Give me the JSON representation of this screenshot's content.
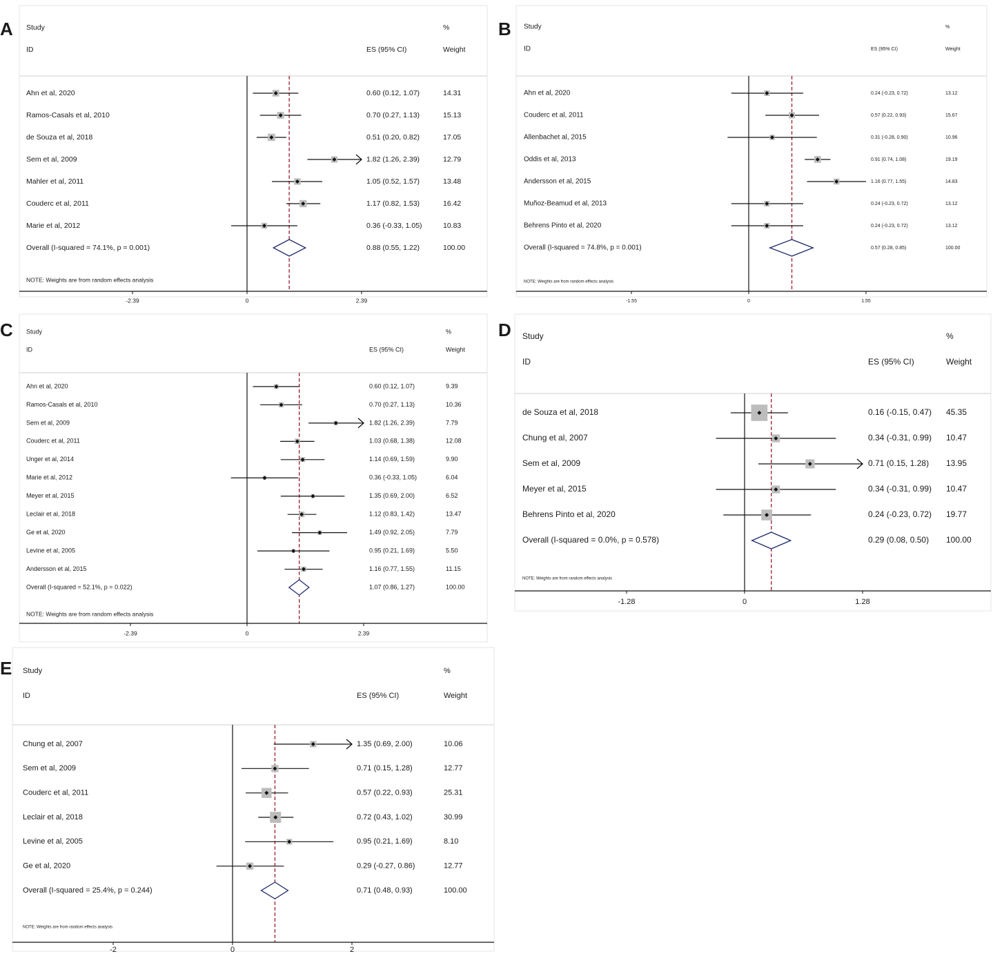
{
  "colors": {
    "text": "#1a1a1a",
    "line": "#111111",
    "overall_dash": "#9b1c2c",
    "diamond": "#1f2a6b",
    "weight_box": "#bdbdbd",
    "panel_background": "#f3f3f3"
  },
  "chart_data": [
    {
      "panel": "A",
      "type": "forest",
      "header": {
        "study": "Study",
        "id": "ID",
        "es": "ES (95% CI)",
        "pct": "%",
        "weight": "Weight"
      },
      "studies": [
        {
          "label": "Ahn et al, 2020",
          "es": 0.6,
          "lo": 0.12,
          "hi": 1.07,
          "es_text": "0.60 (0.12, 1.07)",
          "weight": "14.31"
        },
        {
          "label": "Ramos-Casals et al, 2010",
          "es": 0.7,
          "lo": 0.27,
          "hi": 1.13,
          "es_text": "0.70 (0.27, 1.13)",
          "weight": "15.13"
        },
        {
          "label": "de Souza et al, 2018",
          "es": 0.51,
          "lo": 0.2,
          "hi": 0.82,
          "es_text": "0.51 (0.20, 0.82)",
          "weight": "17.05"
        },
        {
          "label": "Sem et al, 2009",
          "es": 1.82,
          "lo": 1.26,
          "hi": 2.39,
          "es_text": "1.82 (1.26, 2.39)",
          "weight": "12.79",
          "arrow": true
        },
        {
          "label": "Mahler et al, 2011",
          "es": 1.05,
          "lo": 0.52,
          "hi": 1.57,
          "es_text": "1.05 (0.52, 1.57)",
          "weight": "13.48"
        },
        {
          "label": "Couderc et al, 2011",
          "es": 1.17,
          "lo": 0.82,
          "hi": 1.53,
          "es_text": "1.17 (0.82, 1.53)",
          "weight": "16.42"
        },
        {
          "label": "Marie et al, 2012",
          "es": 0.36,
          "lo": -0.33,
          "hi": 1.05,
          "es_text": "0.36 (-0.33, 1.05)",
          "weight": "10.83"
        }
      ],
      "overall": {
        "label": "Overall  (I-squared = 74.1%, p = 0.001)",
        "es": 0.88,
        "lo": 0.55,
        "hi": 1.22,
        "es_text": "0.88 (0.55, 1.22)",
        "weight": "100.00"
      },
      "note": "NOTE: Weights are from random effects analysis",
      "axis": {
        "ticks": [
          -2.39,
          0,
          2.39
        ],
        "tick_labels": [
          "-2.39",
          "0",
          "2.39"
        ]
      }
    },
    {
      "panel": "B",
      "type": "forest",
      "header": {
        "study": "Study",
        "id": "ID",
        "es": "ES (95% CI)",
        "pct": "%",
        "weight": "Weight"
      },
      "studies": [
        {
          "label": "Ahn et al, 2020",
          "es": 0.24,
          "lo": -0.23,
          "hi": 0.72,
          "es_text": "0.24 (-0.23, 0.72)",
          "weight": "13.12"
        },
        {
          "label": "Couderc et al, 2011",
          "es": 0.57,
          "lo": 0.22,
          "hi": 0.93,
          "es_text": "0.57 (0.22, 0.93)",
          "weight": "15.67"
        },
        {
          "label": "Allenbachet al, 2015",
          "es": 0.31,
          "lo": -0.28,
          "hi": 0.9,
          "es_text": "0.31 (-0.28, 0.90)",
          "weight": "10.96"
        },
        {
          "label": "Oddis et al, 2013",
          "es": 0.91,
          "lo": 0.74,
          "hi": 1.08,
          "es_text": "0.91 (0.74, 1.08)",
          "weight": "19.19"
        },
        {
          "label": "Andersson et al, 2015",
          "es": 1.16,
          "lo": 0.77,
          "hi": 1.55,
          "es_text": "1.16 (0.77, 1.55)",
          "weight": "14.83"
        },
        {
          "label": "Muñoz-Beamud et al, 2013",
          "es": 0.24,
          "lo": -0.23,
          "hi": 0.72,
          "es_text": "0.24 (-0.23, 0.72)",
          "weight": "13.12"
        },
        {
          "label": "Behrens Pinto et al, 2020",
          "es": 0.24,
          "lo": -0.23,
          "hi": 0.72,
          "es_text": "0.24 (-0.23, 0.72)",
          "weight": "13.12"
        }
      ],
      "overall": {
        "label": "Overall  (I-squared = 74.8%, p = 0.001)",
        "es": 0.57,
        "lo": 0.28,
        "hi": 0.85,
        "es_text": "0.57 (0.28, 0.85)",
        "weight": "100.00"
      },
      "note": "NOTE: Weights are from random effects analysis",
      "axis": {
        "ticks": [
          -1.55,
          0,
          1.55
        ],
        "tick_labels": [
          "-1.55",
          "0",
          "1.55"
        ]
      }
    },
    {
      "panel": "C",
      "type": "forest",
      "header": {
        "study": "Study",
        "id": "ID",
        "es": "ES (95% CI)",
        "pct": "%",
        "weight": "Weight"
      },
      "studies": [
        {
          "label": "Ahn et al, 2020",
          "es": 0.6,
          "lo": 0.12,
          "hi": 1.07,
          "es_text": "0.60 (0.12, 1.07)",
          "weight": "9.39"
        },
        {
          "label": "Ramos-Casals et al, 2010",
          "es": 0.7,
          "lo": 0.27,
          "hi": 1.13,
          "es_text": "0.70 (0.27, 1.13)",
          "weight": "10.36"
        },
        {
          "label": "Sem et al, 2009",
          "es": 1.82,
          "lo": 1.26,
          "hi": 2.39,
          "es_text": "1.82 (1.26, 2.39)",
          "weight": "7.79",
          "arrow": true
        },
        {
          "label": "Couderc et al, 2011",
          "es": 1.03,
          "lo": 0.68,
          "hi": 1.38,
          "es_text": "1.03 (0.68, 1.38)",
          "weight": "12.08"
        },
        {
          "label": "Unger et al, 2014",
          "es": 1.14,
          "lo": 0.69,
          "hi": 1.59,
          "es_text": "1.14 (0.69, 1.59)",
          "weight": "9.90"
        },
        {
          "label": "Marie et al, 2012",
          "es": 0.36,
          "lo": -0.33,
          "hi": 1.05,
          "es_text": "0.36 (-0.33, 1.05)",
          "weight": "6.04"
        },
        {
          "label": "Meyer et al, 2015",
          "es": 1.35,
          "lo": 0.69,
          "hi": 2.0,
          "es_text": "1.35 (0.69, 2.00)",
          "weight": "6.52"
        },
        {
          "label": "Leclair et al, 2018",
          "es": 1.12,
          "lo": 0.83,
          "hi": 1.42,
          "es_text": "1.12 (0.83, 1.42)",
          "weight": "13.47"
        },
        {
          "label": "Ge et al, 2020",
          "es": 1.49,
          "lo": 0.92,
          "hi": 2.05,
          "es_text": "1.49 (0.92, 2.05)",
          "weight": "7.79"
        },
        {
          "label": "Levine et al, 2005",
          "es": 0.95,
          "lo": 0.21,
          "hi": 1.69,
          "es_text": "0.95 (0.21, 1.69)",
          "weight": "5.50"
        },
        {
          "label": "Andersson et al, 2015",
          "es": 1.16,
          "lo": 0.77,
          "hi": 1.55,
          "es_text": "1.16 (0.77, 1.55)",
          "weight": "11.15"
        }
      ],
      "overall": {
        "label": "Overall  (I-squared = 52.1%, p = 0.022)",
        "es": 1.07,
        "lo": 0.86,
        "hi": 1.27,
        "es_text": "1.07 (0.86, 1.27)",
        "weight": "100.00"
      },
      "note": "NOTE: Weights are from random effects analysis",
      "axis": {
        "ticks": [
          -2.39,
          0,
          2.39
        ],
        "tick_labels": [
          "-2.39",
          "0",
          "2.39"
        ]
      }
    },
    {
      "panel": "D",
      "type": "forest",
      "header": {
        "study": "Study",
        "id": "ID",
        "es": "ES (95% CI)",
        "pct": "%",
        "weight": "Weight"
      },
      "studies": [
        {
          "label": "de Souza et al, 2018",
          "es": 0.16,
          "lo": -0.15,
          "hi": 0.47,
          "es_text": "0.16 (-0.15, 0.47)",
          "weight": "45.35"
        },
        {
          "label": "Chung et al, 2007",
          "es": 0.34,
          "lo": -0.31,
          "hi": 0.99,
          "es_text": "0.34 (-0.31, 0.99)",
          "weight": "10.47"
        },
        {
          "label": "Sem et al, 2009",
          "es": 0.71,
          "lo": 0.15,
          "hi": 1.28,
          "es_text": "0.71 (0.15, 1.28)",
          "weight": "13.95",
          "arrow": true
        },
        {
          "label": "Meyer et al, 2015",
          "es": 0.34,
          "lo": -0.31,
          "hi": 0.99,
          "es_text": "0.34 (-0.31, 0.99)",
          "weight": "10.47"
        },
        {
          "label": "Behrens Pinto et al, 2020",
          "es": 0.24,
          "lo": -0.23,
          "hi": 0.72,
          "es_text": "0.24 (-0.23, 0.72)",
          "weight": "19.77"
        }
      ],
      "overall": {
        "label": "Overall  (I-squared = 0.0%, p = 0.578)",
        "es": 0.29,
        "lo": 0.08,
        "hi": 0.5,
        "es_text": "0.29 (0.08, 0.50)",
        "weight": "100.00"
      },
      "note": "NOTE: Weights are from random effects analysis",
      "axis": {
        "ticks": [
          -1.28,
          0,
          1.28
        ],
        "tick_labels": [
          "-1.28",
          "0",
          "1.28"
        ]
      }
    },
    {
      "panel": "E",
      "type": "forest",
      "header": {
        "study": "Study",
        "id": "ID",
        "es": "ES (95% CI)",
        "pct": "%",
        "weight": "Weight"
      },
      "studies": [
        {
          "label": "Chung et al, 2007",
          "es": 1.35,
          "lo": 0.69,
          "hi": 2.0,
          "es_text": "1.35 (0.69, 2.00)",
          "weight": "10.06",
          "arrow": true
        },
        {
          "label": "Sem et al, 2009",
          "es": 0.71,
          "lo": 0.15,
          "hi": 1.28,
          "es_text": "0.71 (0.15, 1.28)",
          "weight": "12.77"
        },
        {
          "label": "Couderc et al, 2011",
          "es": 0.57,
          "lo": 0.22,
          "hi": 0.93,
          "es_text": "0.57 (0.22, 0.93)",
          "weight": "25.31"
        },
        {
          "label": "Leclair et al, 2018",
          "es": 0.72,
          "lo": 0.43,
          "hi": 1.02,
          "es_text": "0.72 (0.43, 1.02)",
          "weight": "30.99"
        },
        {
          "label": "Levine et al, 2005",
          "es": 0.95,
          "lo": 0.21,
          "hi": 1.69,
          "es_text": "0.95 (0.21, 1.69)",
          "weight": "8.10"
        },
        {
          "label": "Ge et al, 2020",
          "es": 0.29,
          "lo": -0.27,
          "hi": 0.86,
          "es_text": "0.29 (-0.27, 0.86)",
          "weight": "12.77"
        }
      ],
      "overall": {
        "label": "Overall  (I-squared = 25.4%, p = 0.244)",
        "es": 0.71,
        "lo": 0.48,
        "hi": 0.93,
        "es_text": "0.71 (0.48, 0.93)",
        "weight": "100.00"
      },
      "note": "NOTE: Weights are from random effects analysis",
      "axis": {
        "ticks": [
          -2,
          0,
          2
        ],
        "tick_labels": [
          "-2",
          "0",
          "2"
        ]
      }
    }
  ]
}
